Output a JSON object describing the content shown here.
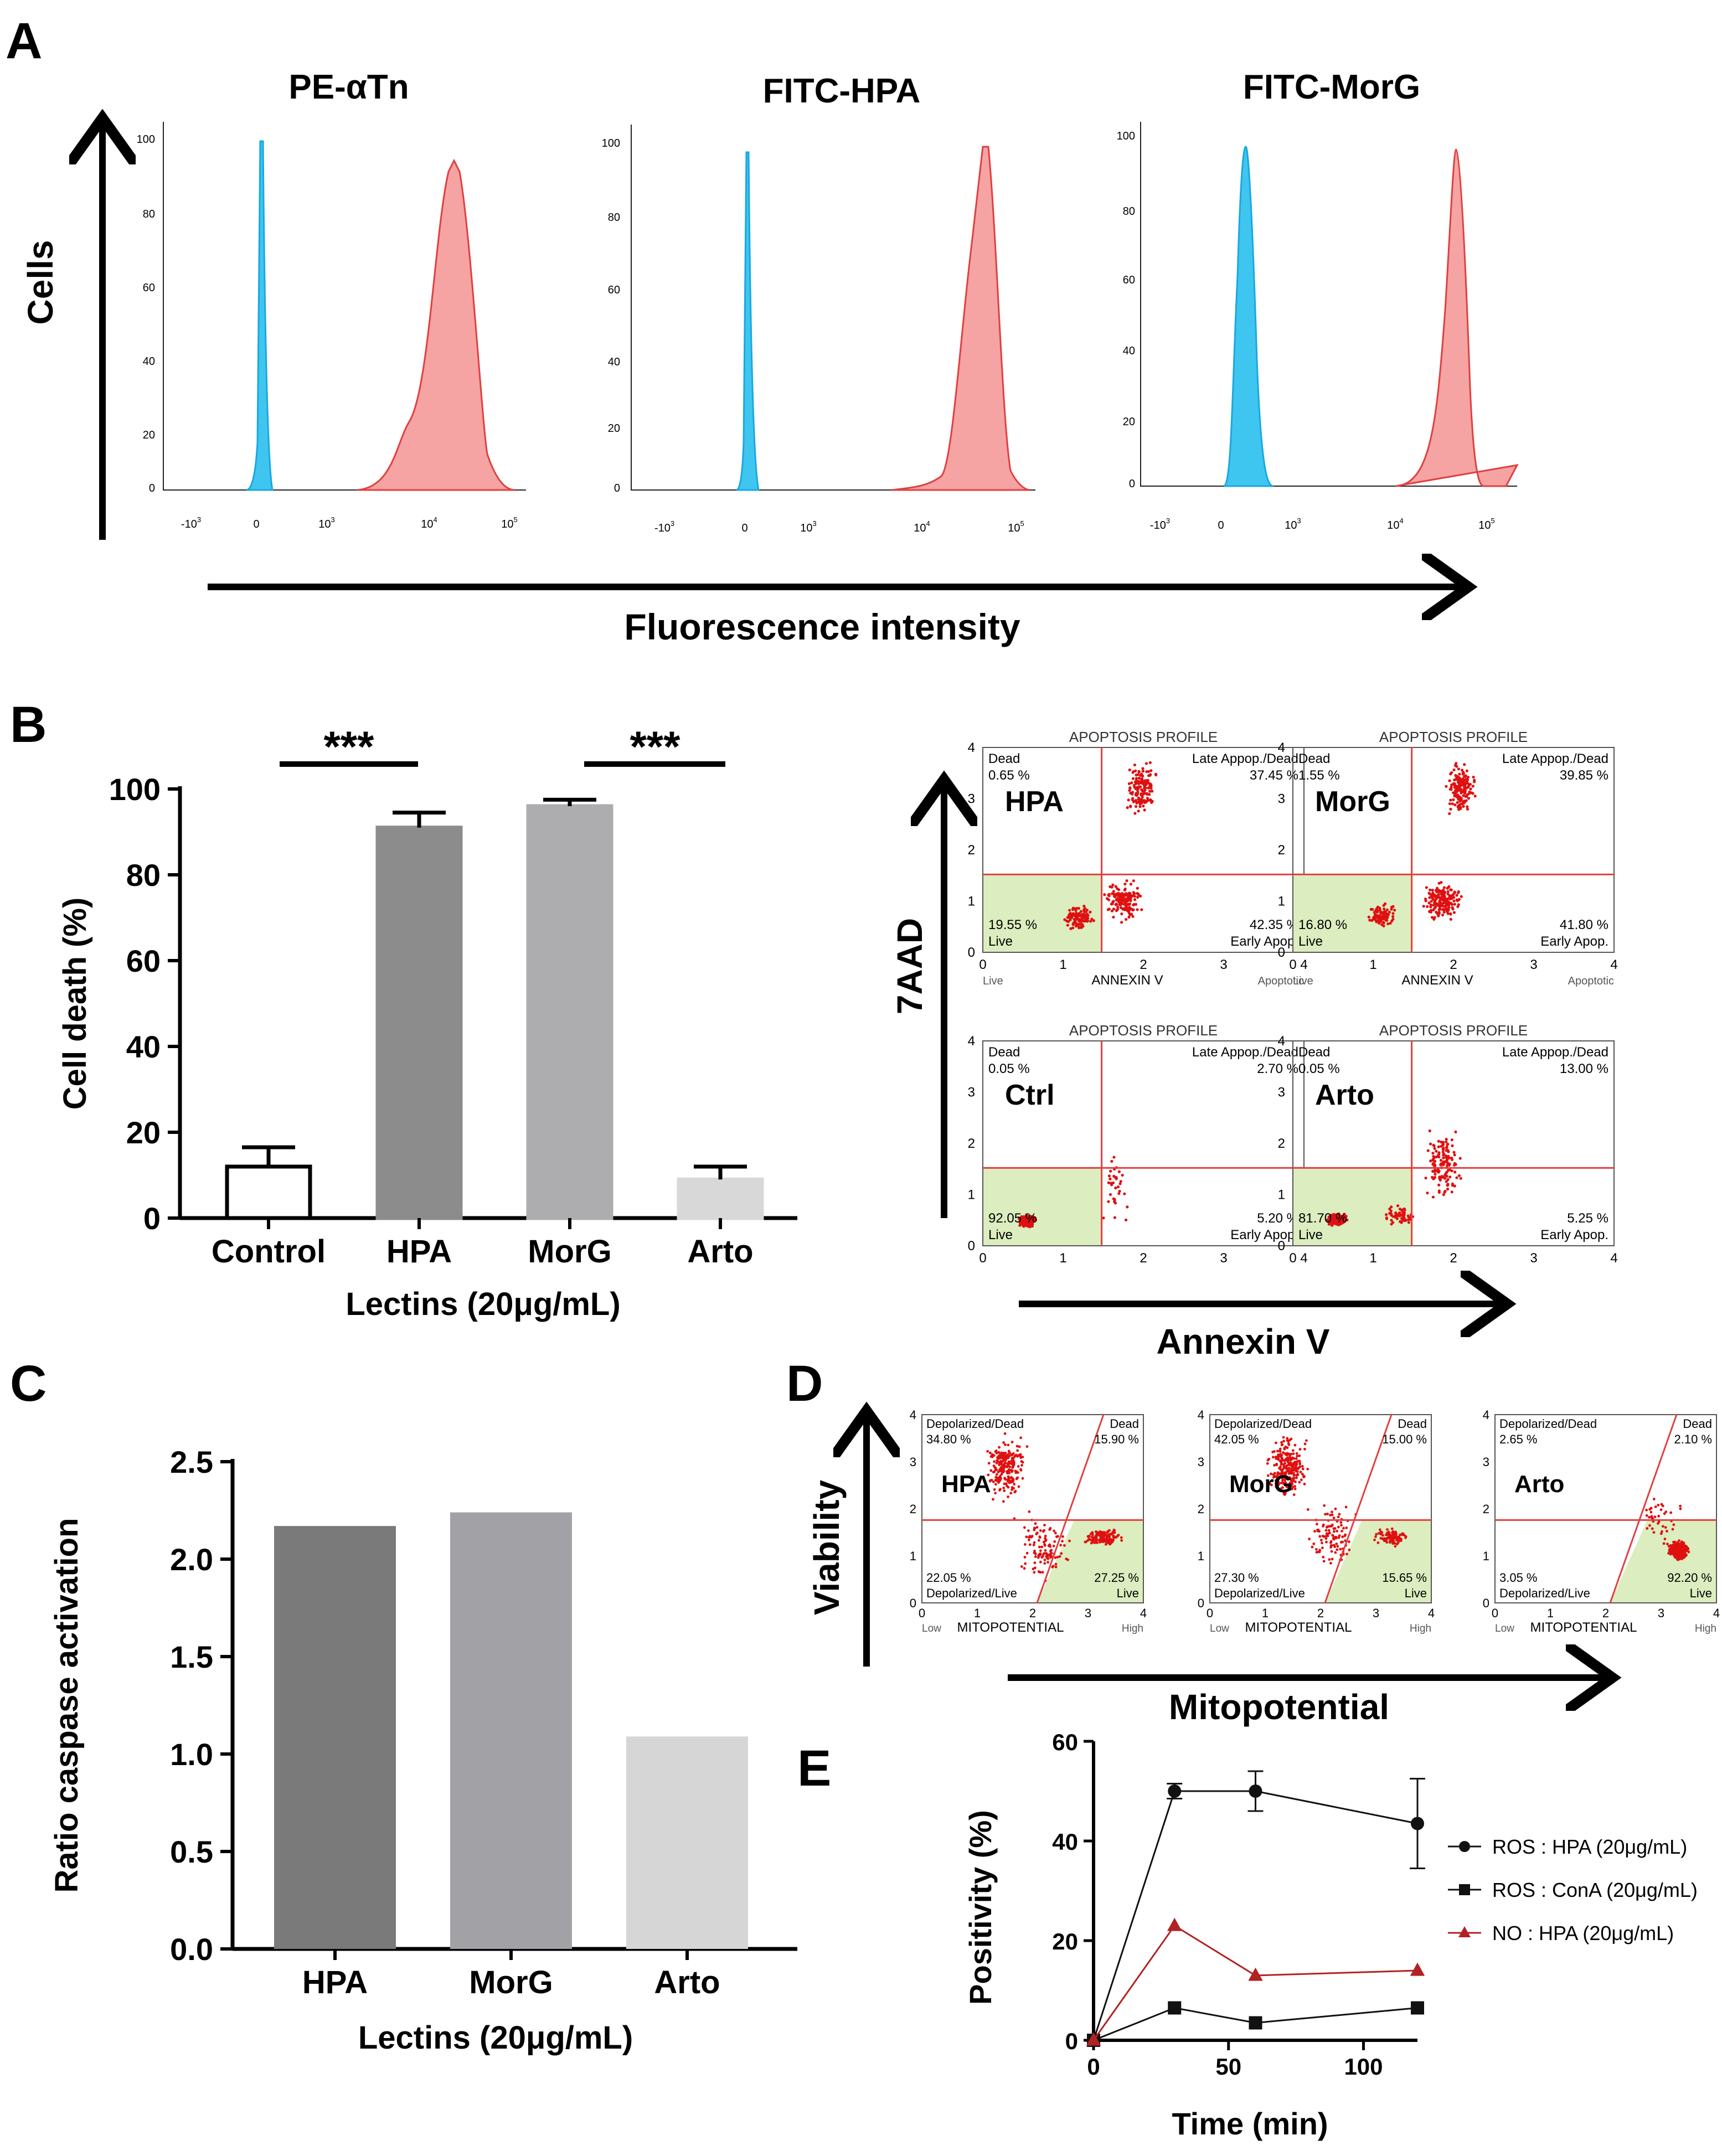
{
  "panel_letters": {
    "a": "A",
    "b": "B",
    "c": "C",
    "d": "D",
    "e": "E"
  },
  "colors": {
    "control": "#3fc6f0",
    "stained": "#f07f7f",
    "stained_line": "#e04040",
    "dots": "#e01010",
    "gate": "#e04040",
    "live_quad": "#dcedbf"
  },
  "panelA": {
    "y_axis_label": "Cells",
    "x_axis_label": "Fluorescence intensity",
    "y_ticks": [
      "0",
      "20",
      "40",
      "60",
      "80",
      "100"
    ],
    "x_ticks": [
      "-10",
      "0",
      "10",
      "10",
      "10"
    ],
    "x_tick_exps": [
      "3",
      "",
      "3",
      "4",
      "5"
    ],
    "histograms": [
      {
        "title": "PE-αTn",
        "control_peak": 100,
        "stained_peak": 96
      },
      {
        "title": "FITC-HPA",
        "control_peak": 96,
        "stained_peak": 97
      },
      {
        "title": "FITC-MorG",
        "control_peak": 98,
        "stained_peak": 95
      }
    ]
  },
  "panelB": {
    "significance": [
      "***",
      "***"
    ],
    "dotplot_y_label": "7AAD",
    "dotplot_x_label": "Annexin V",
    "dotplots": [
      {
        "label": "HPA",
        "title": "APOPTOSIS PROFILE",
        "tl_name": "Dead",
        "tl_val": "0.65 %",
        "tr_name": "Late Appop./Dead",
        "tr_val": "37.45 %",
        "bl_val": "19.55 %",
        "bl_name": "Live",
        "br_val": "42.35 %",
        "br_name": "Early Apop.",
        "axis_name": "ANNEXIN V",
        "axis_left": "Live",
        "axis_right": "Apoptotic"
      },
      {
        "label": "MorG",
        "title": "APOPTOSIS PROFILE",
        "tl_name": "Dead",
        "tl_val": "1.55 %",
        "tr_name": "Late Appop./Dead",
        "tr_val": "39.85 %",
        "bl_val": "16.80 %",
        "bl_name": "Live",
        "br_val": "41.80 %",
        "br_name": "Early Apop.",
        "axis_name": "ANNEXIN V",
        "axis_left": "Live",
        "axis_right": "Apoptotic"
      },
      {
        "label": "Ctrl",
        "title": "APOPTOSIS PROFILE",
        "tl_name": "Dead",
        "tl_val": "0.05 %",
        "tr_name": "Late Appop./Dead",
        "tr_val": "2.70 %",
        "bl_val": "92.05 %",
        "bl_name": "Live",
        "br_val": "5.20 %",
        "br_name": "Early Apop.",
        "axis_name": "",
        "axis_left": "",
        "axis_right": ""
      },
      {
        "label": "Arto",
        "title": "APOPTOSIS PROFILE",
        "tl_name": "Dead",
        "tl_val": "0.05 %",
        "tr_name": "Late Appop./Dead",
        "tr_val": "13.00 %",
        "bl_val": "81.70 %",
        "bl_name": "Live",
        "br_val": "5.25 %",
        "br_name": "Early Apop.",
        "axis_name": "",
        "axis_left": "",
        "axis_right": ""
      }
    ]
  },
  "panelD": {
    "y_label": "Viability",
    "x_label": "Mitopotential",
    "plots": [
      {
        "label": "HPA",
        "tl_name": "Depolarized/Dead",
        "tl_val": "34.80 %",
        "tr_name": "Dead",
        "tr_val": "15.90 %",
        "bl_val": "22.05 %",
        "bl_name": "Depolarized/Live",
        "br_val": "27.25 %",
        "br_name": "Live",
        "axis_name": "MITOPOTENTIAL",
        "axis_left": "Low",
        "axis_right": "High"
      },
      {
        "label": "MorG",
        "tl_name": "Depolarized/Dead",
        "tl_val": "42.05 %",
        "tr_name": "Dead",
        "tr_val": "15.00 %",
        "bl_val": "27.30 %",
        "bl_name": "Depolarized/Live",
        "br_val": "15.65 %",
        "br_name": "Live",
        "axis_name": "MITOPOTENTIAL",
        "axis_left": "Low",
        "axis_right": "High"
      },
      {
        "label": "Arto",
        "tl_name": "Depolarized/Dead",
        "tl_val": "2.65 %",
        "tr_name": "Dead",
        "tr_val": "2.10 %",
        "bl_val": "3.05 %",
        "bl_name": "Depolarized/Live",
        "br_val": "92.20 %",
        "br_name": "Live",
        "axis_name": "MITOPOTENTIAL",
        "axis_left": "Low",
        "axis_right": "High"
      }
    ]
  },
  "chart_data": [
    {
      "panel": "B",
      "type": "bar",
      "ylabel": "Cell death (%)",
      "xlabel": "Lectins (20μg/mL)",
      "categories": [
        "Control",
        "HPA",
        "MorG",
        "Arto"
      ],
      "values": [
        12,
        91,
        96,
        9
      ],
      "errors": [
        4.5,
        3.5,
        1.5,
        3
      ],
      "colors": [
        "#ffffff",
        "#8c8c8c",
        "#adadb0",
        "#d8d8d8"
      ],
      "ylim": [
        0,
        100
      ],
      "yticks": [
        "0",
        "20",
        "40",
        "60",
        "80",
        "100"
      ]
    },
    {
      "panel": "C",
      "type": "bar",
      "ylabel": "Ratio caspase activation",
      "xlabel": "Lectins (20μg/mL)",
      "categories": [
        "HPA",
        "MorG",
        "Arto"
      ],
      "values": [
        2.17,
        2.24,
        1.09
      ],
      "colors": [
        "#7a7a7a",
        "#a2a2a6",
        "#d6d6d6"
      ],
      "ylim": [
        0,
        2.5
      ],
      "yticks": [
        "0.0",
        "0.5",
        "1.0",
        "1.5",
        "2.0",
        "2.5"
      ]
    },
    {
      "panel": "E",
      "type": "line",
      "ylabel": "Positivity (%)",
      "xlabel": "Time (min)",
      "xlim": [
        0,
        120
      ],
      "ylim": [
        0,
        60
      ],
      "xticks": [
        "0",
        "50",
        "100"
      ],
      "yticks": [
        "0",
        "20",
        "40",
        "60"
      ],
      "series": [
        {
          "name": "ROS : HPA (20μg/mL)",
          "color": "#111111",
          "marker": "circle",
          "x": [
            0,
            30,
            60,
            120
          ],
          "y": [
            0,
            50,
            50,
            43.5
          ],
          "err": [
            0,
            1.5,
            4,
            9
          ]
        },
        {
          "name": "ROS : ConA (20μg/mL)",
          "color": "#111111",
          "marker": "square",
          "x": [
            0,
            30,
            60,
            120
          ],
          "y": [
            0,
            6.5,
            3.5,
            6.5
          ],
          "err": [
            0,
            0,
            0,
            0
          ]
        },
        {
          "name": "NO : HPA (20μg/mL)",
          "color": "#b22222",
          "marker": "triangle",
          "x": [
            0,
            30,
            60,
            120
          ],
          "y": [
            0,
            23,
            13,
            14
          ],
          "err": [
            0,
            0,
            0,
            0
          ]
        }
      ]
    }
  ]
}
